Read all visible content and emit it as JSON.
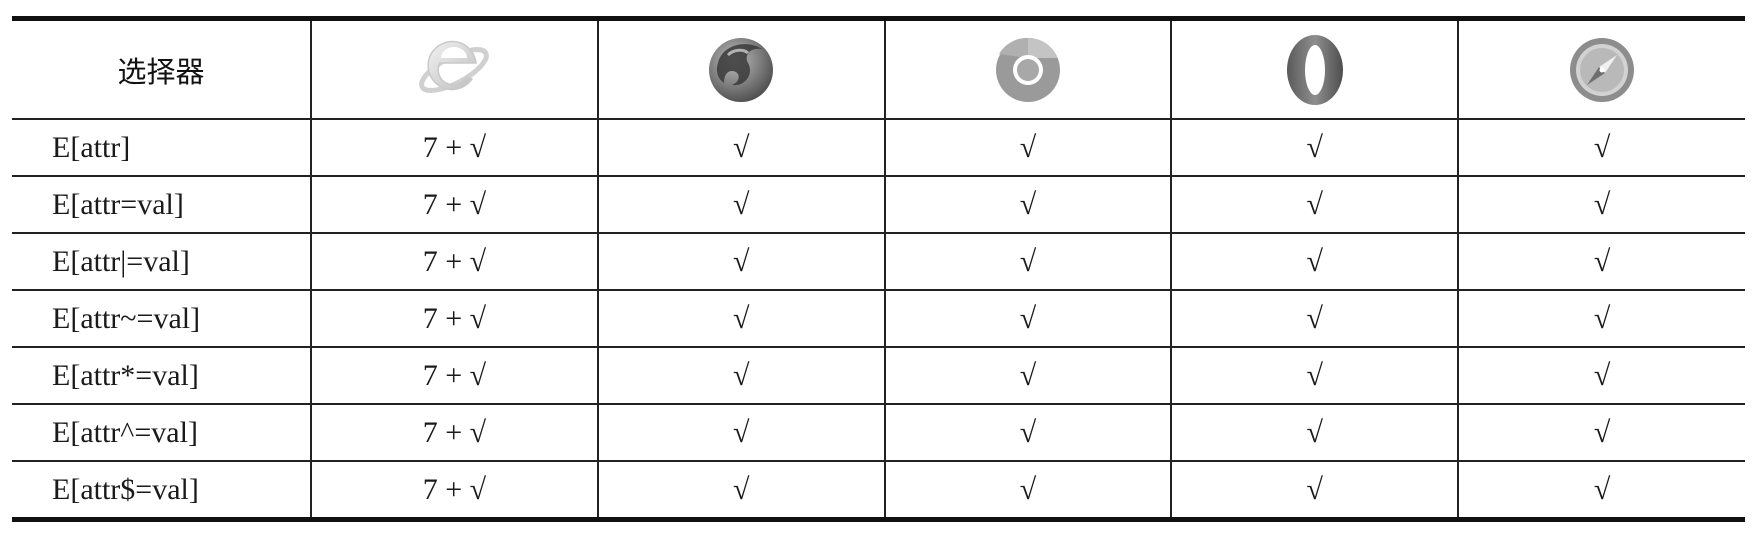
{
  "table": {
    "selector_header": "选择器",
    "browsers": [
      {
        "icon": "internet-explorer-icon"
      },
      {
        "icon": "firefox-icon"
      },
      {
        "icon": "chrome-icon"
      },
      {
        "icon": "opera-icon"
      },
      {
        "icon": "safari-icon"
      }
    ],
    "rows": [
      {
        "selector": "E[attr]",
        "ie": "7 + √",
        "firefox": "√",
        "chrome": "√",
        "opera": "√",
        "safari": "√"
      },
      {
        "selector": "E[attr=val]",
        "ie": "7 + √",
        "firefox": "√",
        "chrome": "√",
        "opera": "√",
        "safari": "√"
      },
      {
        "selector": "E[attr|=val]",
        "ie": "7 + √",
        "firefox": "√",
        "chrome": "√",
        "opera": "√",
        "safari": "√"
      },
      {
        "selector": "E[attr~=val]",
        "ie": "7 + √",
        "firefox": "√",
        "chrome": "√",
        "opera": "√",
        "safari": "√"
      },
      {
        "selector": "E[attr*=val]",
        "ie": "7 + √",
        "firefox": "√",
        "chrome": "√",
        "opera": "√",
        "safari": "√"
      },
      {
        "selector": "E[attr^=val]",
        "ie": "7 + √",
        "firefox": "√",
        "chrome": "√",
        "opera": "√",
        "safari": "√"
      },
      {
        "selector": "E[attr$=val]",
        "ie": "7 + √",
        "firefox": "√",
        "chrome": "√",
        "opera": "√",
        "safari": "√"
      }
    ]
  }
}
